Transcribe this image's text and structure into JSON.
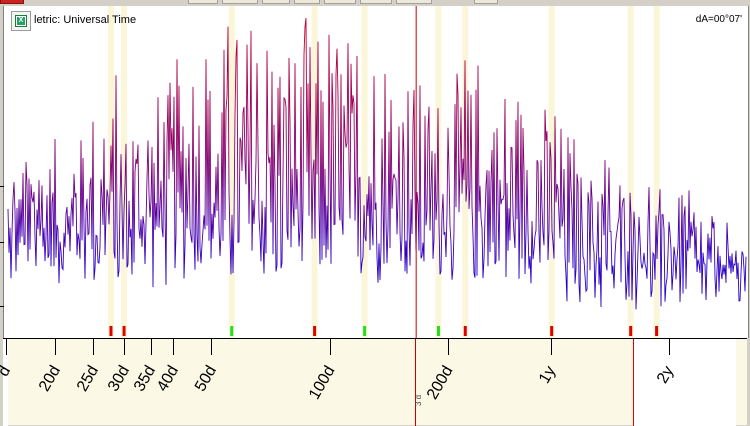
{
  "window": {
    "title": "letric: Universal Time",
    "dA": "dA=00°07'"
  },
  "icons": {
    "export": "excel-export-icon"
  },
  "colors": {
    "line_low": "#2a00c8",
    "line_high": "#c8002a",
    "highlight": "#fbf6d8",
    "red_marker": "#e00000",
    "green_marker": "#22dd22",
    "cursor": "#cc0000"
  },
  "axis": {
    "scale": "log",
    "ticks": [
      {
        "label": "d",
        "value": 15
      },
      {
        "label": "20d",
        "value": 20
      },
      {
        "label": "25d",
        "value": 25
      },
      {
        "label": "30d",
        "value": 30
      },
      {
        "label": "35d",
        "value": 35
      },
      {
        "label": "40d",
        "value": 40
      },
      {
        "label": "50d",
        "value": 50
      },
      {
        "label": "100d",
        "value": 100
      },
      {
        "label": "200d",
        "value": 200
      },
      {
        "label": "1y",
        "value": 365
      },
      {
        "label": "2y",
        "value": 730
      }
    ],
    "cursor_label": "3 d"
  },
  "markers": [
    {
      "color": "red",
      "at": 27.6
    },
    {
      "color": "red",
      "at": 29.8
    },
    {
      "color": "green",
      "at": 56
    },
    {
      "color": "red",
      "at": 91
    },
    {
      "color": "green",
      "at": 122
    },
    {
      "color": "green",
      "at": 188
    },
    {
      "color": "red",
      "at": 220
    },
    {
      "color": "red",
      "at": 365
    },
    {
      "color": "red",
      "at": 580
    },
    {
      "color": "red",
      "at": 675
    }
  ],
  "highlight_bands": [
    27.6,
    29.8,
    56,
    91,
    122,
    188,
    220,
    365,
    580,
    675
  ],
  "cursor_at": 165,
  "axis_range_end": 590
}
